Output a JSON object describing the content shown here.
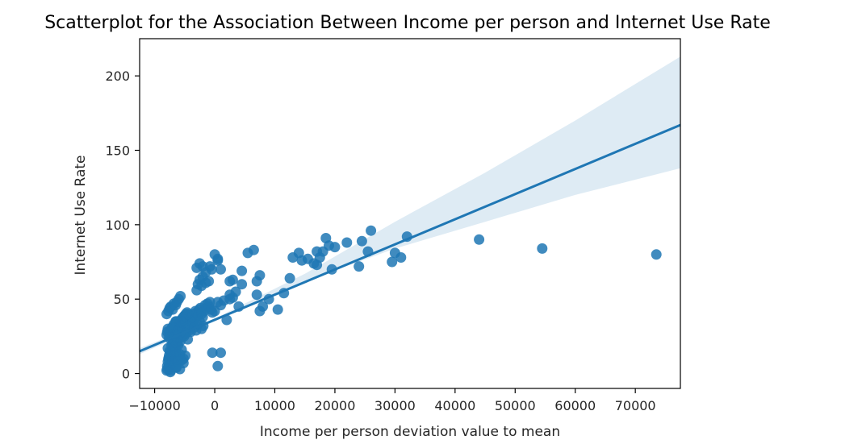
{
  "chart_data": {
    "type": "scatter",
    "title": "Scatterplot for the Association Between Income per person and Internet Use Rate",
    "xlabel": "Income per person deviation value to mean",
    "ylabel": "Internet Use Rate",
    "xlim": [
      -12500,
      77500
    ],
    "ylim": [
      -10,
      225
    ],
    "xticks": [
      -10000,
      0,
      10000,
      20000,
      30000,
      40000,
      50000,
      60000,
      70000
    ],
    "xtick_labels": [
      "−10000",
      "0",
      "10000",
      "20000",
      "30000",
      "40000",
      "50000",
      "60000",
      "70000"
    ],
    "yticks": [
      0,
      50,
      100,
      150,
      200
    ],
    "ytick_labels": [
      "0",
      "50",
      "100",
      "150",
      "200"
    ],
    "grid": false,
    "color": "#1f77b4",
    "regression": {
      "x": [
        -12500,
        77500
      ],
      "y": [
        15,
        167
      ]
    },
    "confidence_band": {
      "x": [
        -12500,
        0,
        15000,
        30000,
        45000,
        60000,
        77500
      ],
      "lower": [
        13,
        35,
        62,
        84,
        102,
        120,
        138
      ],
      "upper": [
        17,
        37,
        67,
        102,
        135,
        170,
        213
      ]
    },
    "points": {
      "x": [
        -8000,
        -7900,
        -7800,
        -7700,
        -7600,
        -7500,
        -7400,
        -7300,
        -7200,
        -7100,
        -7000,
        -6900,
        -6800,
        -6700,
        -6600,
        -6500,
        -6400,
        -6300,
        -6200,
        -6100,
        -8000,
        -7900,
        -7800,
        -7600,
        -7500,
        -7400,
        -7200,
        -7000,
        -6800,
        -6600,
        -6400,
        -6200,
        -6000,
        -5800,
        -5600,
        -5400,
        -5200,
        -5000,
        -4800,
        -4600,
        -8000,
        -7700,
        -7500,
        -7300,
        -7000,
        -6800,
        -6500,
        -6300,
        -6000,
        -5700,
        -7800,
        -7500,
        -7200,
        -6900,
        -6600,
        -6300,
        -6000,
        -5700,
        -5400,
        -5100,
        -7600,
        -7300,
        -7000,
        -6700,
        -6400,
        -6100,
        -5800,
        -5500,
        -5200,
        -4900,
        -7900,
        -7600,
        -7300,
        -7000,
        -6700,
        -6400,
        -6100,
        -5800,
        -5500,
        -5200,
        -7400,
        -7100,
        -6800,
        -6500,
        -6200,
        -5900,
        -5600,
        -5300,
        -5000,
        -4700,
        -4500,
        -4200,
        -4000,
        -3800,
        -3600,
        -3400,
        -3200,
        -3000,
        -2800,
        -2600,
        -2400,
        -2200,
        -2000,
        -1800,
        -1600,
        -1400,
        -1200,
        -1000,
        -800,
        -600,
        -4500,
        -4300,
        -4000,
        -3700,
        -3400,
        -3100,
        -2800,
        -2500,
        -2200,
        -1900,
        -6200,
        -6000,
        -5700,
        -5400,
        -5100,
        -4800,
        -4500,
        -4200,
        -3000,
        -2800,
        -2500,
        -2200,
        -2000,
        -1500,
        -1000,
        -500,
        -3000,
        -2500,
        -2000,
        -1500,
        -800,
        0,
        500,
        1000,
        -400,
        0,
        500,
        1000,
        1500,
        2000,
        2500,
        3000,
        500,
        1000,
        2500,
        3000,
        3500,
        4000,
        4500,
        5500,
        6500,
        7000,
        7500,
        8000,
        9000,
        10500,
        11500,
        12500,
        13000,
        14000,
        14500,
        15500,
        16500,
        17000,
        18000,
        18500,
        19000,
        19500,
        20000,
        22000,
        24000,
        24500,
        25500,
        26000,
        29500,
        30000,
        31000,
        32000,
        44000,
        54500,
        73500,
        500,
        -400,
        -4500,
        2500,
        4500,
        7000,
        7500,
        17000,
        17500
      ],
      "y": [
        2,
        5,
        8,
        10,
        12,
        3,
        1,
        6,
        15,
        9,
        20,
        14,
        18,
        7,
        11,
        16,
        4,
        13,
        22,
        19,
        26,
        28,
        30,
        24,
        27,
        25,
        29,
        31,
        23,
        21,
        35,
        33,
        34,
        32,
        36,
        37,
        38,
        39,
        40,
        41,
        40,
        42,
        44,
        45,
        43,
        47,
        46,
        48,
        50,
        52,
        17,
        15,
        19,
        21,
        18,
        20,
        24,
        22,
        25,
        27,
        10,
        12,
        8,
        14,
        11,
        9,
        13,
        16,
        10,
        12,
        3,
        5,
        2,
        7,
        6,
        4,
        8,
        3,
        9,
        7,
        29,
        31,
        33,
        35,
        28,
        30,
        32,
        34,
        36,
        38,
        37,
        39,
        35,
        38,
        40,
        36,
        42,
        41,
        39,
        43,
        44,
        40,
        38,
        42,
        46,
        44,
        47,
        45,
        48,
        43,
        30,
        32,
        28,
        34,
        31,
        29,
        33,
        35,
        30,
        32,
        22,
        26,
        24,
        28,
        25,
        27,
        23,
        29,
        56,
        60,
        63,
        59,
        65,
        61,
        62,
        70,
        71,
        74,
        72,
        68,
        72,
        80,
        76,
        70,
        41,
        42,
        48,
        46,
        49,
        36,
        53,
        51,
        5,
        14,
        62,
        63,
        55,
        45,
        69,
        81,
        83,
        53,
        66,
        45,
        50,
        43,
        54,
        64,
        78,
        81,
        76,
        77,
        74,
        82,
        82,
        91,
        86,
        70,
        85,
        88,
        72,
        89,
        82,
        96,
        75,
        81,
        78,
        92,
        90,
        84,
        80,
        77,
        14,
        40,
        50,
        60,
        62,
        42,
        73,
        78
      ]
    }
  }
}
